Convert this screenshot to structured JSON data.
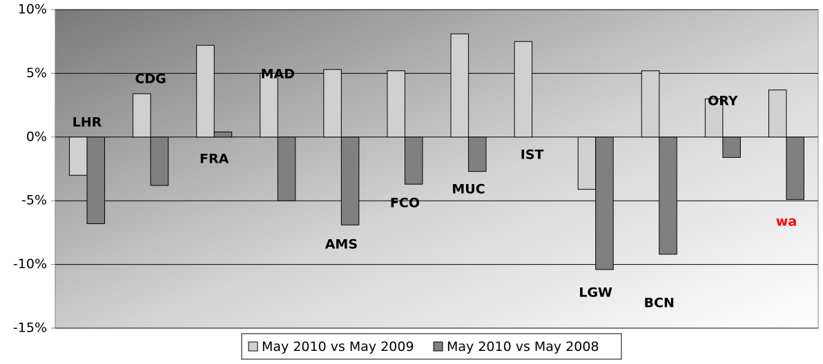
{
  "chart_data": {
    "type": "bar",
    "categories": [
      "LHR",
      "CDG",
      "FRA",
      "MAD",
      "AMS",
      "FCO",
      "MUC",
      "IST",
      "LGW",
      "BCN",
      "ORY",
      "wa"
    ],
    "category_label_colors": [
      "#000000",
      "#000000",
      "#000000",
      "#000000",
      "#000000",
      "#000000",
      "#000000",
      "#000000",
      "#000000",
      "#000000",
      "#000000",
      "#ff0000"
    ],
    "series": [
      {
        "name": "May 2010 vs May 2009",
        "color": "#d0d0d0",
        "values": [
          -3.0,
          3.4,
          7.2,
          5.0,
          5.3,
          5.2,
          8.1,
          7.5,
          -4.1,
          5.2,
          3.0,
          3.7
        ]
      },
      {
        "name": "May 2010 vs May 2008",
        "color": "#808080",
        "values": [
          -6.8,
          -3.8,
          0.4,
          -5.0,
          -6.9,
          -3.7,
          -2.7,
          null,
          -10.4,
          -9.2,
          -1.6,
          -4.9
        ]
      }
    ],
    "ylim": [
      -15,
      10
    ],
    "yticks": [
      {
        "value": -15,
        "label": "-15%"
      },
      {
        "value": -10,
        "label": "-10%"
      },
      {
        "value": -5,
        "label": "-5%"
      },
      {
        "value": 0,
        "label": "0%"
      },
      {
        "value": 5,
        "label": "5%"
      },
      {
        "value": 10,
        "label": "10%"
      }
    ],
    "grid": true,
    "legend": "bottom"
  }
}
